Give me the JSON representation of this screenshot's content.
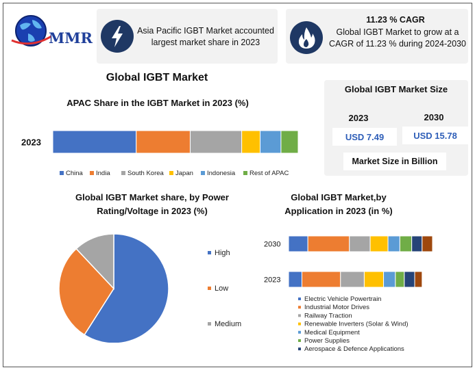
{
  "brand": {
    "logo_text": "MMR"
  },
  "info_left": {
    "text": "Asia Pacific IGBT Market accounted largest market share in 2023"
  },
  "info_right": {
    "title": "11.23 % CAGR",
    "text": "Global IGBT Market to grow at a CAGR of 11.23 % during 2024-2030"
  },
  "main_title": "Global IGBT Market",
  "market_size": {
    "title": "Global IGBT Market Size",
    "year1": "2023",
    "year2": "2030",
    "value1": "USD 7.49",
    "value2": "USD 15.78",
    "footer": "Market Size in Billion"
  },
  "colors": {
    "blue": "#4472c4",
    "orange": "#ed7d31",
    "gray": "#a5a5a5",
    "yellow": "#ffc000",
    "lightblue": "#5b9bd5",
    "green": "#70ad47",
    "navy": "#264478",
    "brown": "#9e480e",
    "panel_dark": "#1f3864"
  },
  "icons": {
    "left": "lightning-bolt-icon",
    "right": "flame-icon"
  },
  "chart_data": [
    {
      "type": "bar",
      "orientation": "horizontal-stacked",
      "title": "APAC Share in the IGBT Market in 2023 (%)",
      "categories": [
        "2023"
      ],
      "series": [
        {
          "name": "China",
          "values": [
            34
          ]
        },
        {
          "name": "India",
          "values": [
            22
          ]
        },
        {
          "name": "South Korea",
          "values": [
            21
          ]
        },
        {
          "name": "Japan",
          "values": [
            7.5
          ]
        },
        {
          "name": "Indonesia",
          "values": [
            8.5
          ]
        },
        {
          "name": "Rest of APAC",
          "values": [
            7
          ]
        }
      ],
      "legend": "bottom"
    },
    {
      "type": "pie",
      "title": "Global IGBT Market share, by Power Rating/Voltage in 2023  (%)",
      "labels": [
        "High",
        "Low",
        "Medium"
      ],
      "values": [
        59,
        29,
        12
      ],
      "legend": "right"
    },
    {
      "type": "bar",
      "orientation": "horizontal-stacked",
      "title": "Global IGBT Market,by Application in 2023 (in %)",
      "categories": [
        "2030",
        "2023"
      ],
      "series": [
        {
          "name": "Electric Vehicle Powertrain",
          "values": [
            13,
            9
          ]
        },
        {
          "name": "Industrial Motor Drives",
          "values": [
            28,
            26
          ]
        },
        {
          "name": "Railway Traction",
          "values": [
            14,
            16
          ]
        },
        {
          "name": "Renewable Inverters (Solar & Wind)",
          "values": [
            12,
            13
          ]
        },
        {
          "name": "Medical Equipment",
          "values": [
            8,
            8
          ]
        },
        {
          "name": "Power Supplies",
          "values": [
            8,
            6
          ]
        },
        {
          "name": "Aerospace & Defence Applications",
          "values": [
            7,
            7
          ]
        },
        {
          "name": "",
          "values": [
            7,
            5
          ]
        }
      ],
      "legend": "bottom"
    }
  ]
}
